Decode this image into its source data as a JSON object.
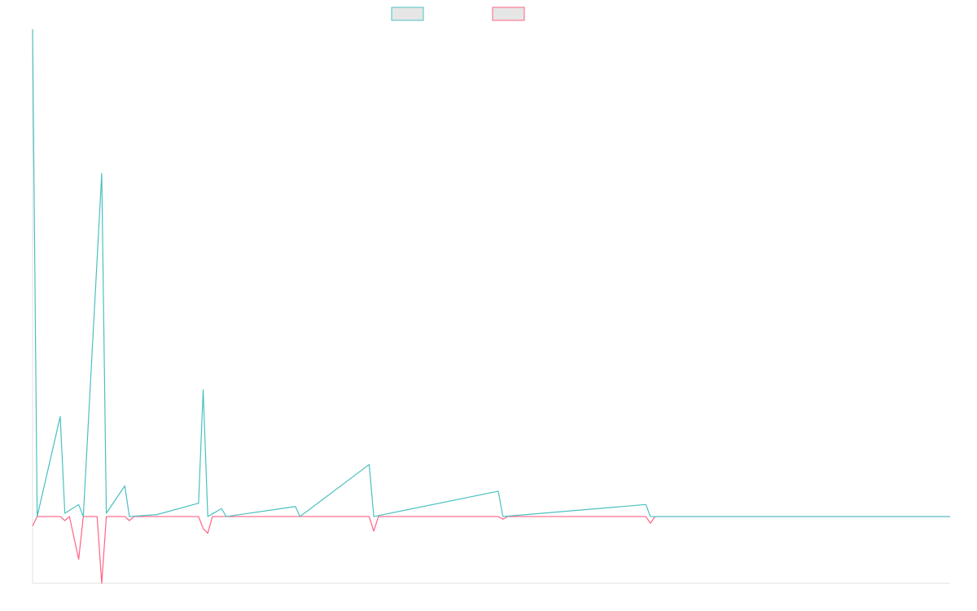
{
  "colors": {
    "series_a": "#4bc0c0",
    "series_b": "#ff6384",
    "legend_fill": "#e6e6e6",
    "axis": "#e0e0e0",
    "background": "#ffffff"
  },
  "chart_data": {
    "type": "line",
    "title": "",
    "xlabel": "",
    "ylabel": "",
    "grid": false,
    "legend": "top-center",
    "ylim": [
      -1.0,
      7.3
    ],
    "x_count": 200,
    "series": [
      {
        "color": "#4bc0c0",
        "points": [
          [
            0,
            7.3
          ],
          [
            1,
            0
          ],
          [
            6,
            1.5
          ],
          [
            7,
            0.05
          ],
          [
            10,
            0.18
          ],
          [
            11,
            0
          ],
          [
            15,
            5.14
          ],
          [
            16,
            0.05
          ],
          [
            20,
            0.46
          ],
          [
            21,
            0
          ],
          [
            27,
            0.03
          ],
          [
            36,
            0.2
          ],
          [
            37,
            1.9
          ],
          [
            38,
            0
          ],
          [
            41,
            0.12
          ],
          [
            42,
            0
          ],
          [
            57,
            0.15
          ],
          [
            58,
            0
          ],
          [
            73,
            0.78
          ],
          [
            74,
            0
          ],
          [
            101,
            0.38
          ],
          [
            102,
            0
          ],
          [
            133,
            0.18
          ],
          [
            134,
            0
          ],
          [
            199,
            0
          ]
        ]
      },
      {
        "color": "#ff6384",
        "points": [
          [
            0,
            -0.14
          ],
          [
            1,
            0
          ],
          [
            6,
            0
          ],
          [
            7,
            -0.06
          ],
          [
            8,
            0
          ],
          [
            10,
            -0.64
          ],
          [
            11,
            0
          ],
          [
            14,
            0
          ],
          [
            15,
            -1.0
          ],
          [
            16,
            0
          ],
          [
            20,
            0
          ],
          [
            21,
            -0.06
          ],
          [
            22,
            0
          ],
          [
            36,
            0
          ],
          [
            37,
            -0.18
          ],
          [
            38,
            -0.25
          ],
          [
            39,
            0
          ],
          [
            73,
            0
          ],
          [
            74,
            -0.22
          ],
          [
            75,
            0
          ],
          [
            101,
            0
          ],
          [
            102,
            -0.04
          ],
          [
            103,
            0
          ],
          [
            133,
            0
          ],
          [
            134,
            -0.1
          ],
          [
            135,
            0
          ],
          [
            199,
            0
          ]
        ]
      }
    ]
  }
}
